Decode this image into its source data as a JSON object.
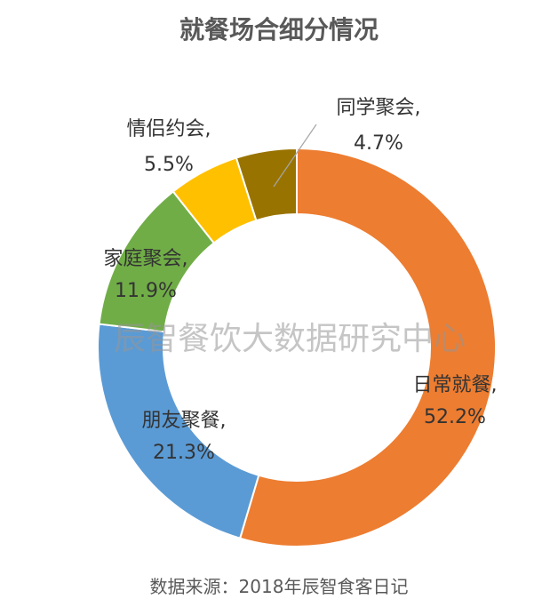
{
  "chart_data": {
    "type": "pie",
    "title": "就餐场合细分情况",
    "slices": [
      {
        "label": "日常就餐,",
        "value_text": "52.2%",
        "value": 52.2,
        "color": "#ED7D31"
      },
      {
        "label": "朋友聚餐,",
        "value_text": "21.3%",
        "value": 21.3,
        "color": "#5B9BD5"
      },
      {
        "label": "家庭聚会,",
        "value_text": "11.9%",
        "value": 11.9,
        "color": "#70AD47"
      },
      {
        "label": "情侣约会,",
        "value_text": "5.5%",
        "value": 5.5,
        "color": "#FFC000"
      },
      {
        "label": "同学聚会,",
        "value_text": "4.7%",
        "value": 4.7,
        "color": "#997300"
      }
    ]
  },
  "watermark": "辰智餐饮大数据研究中心",
  "source": "数据来源：2018年辰智食客日记"
}
